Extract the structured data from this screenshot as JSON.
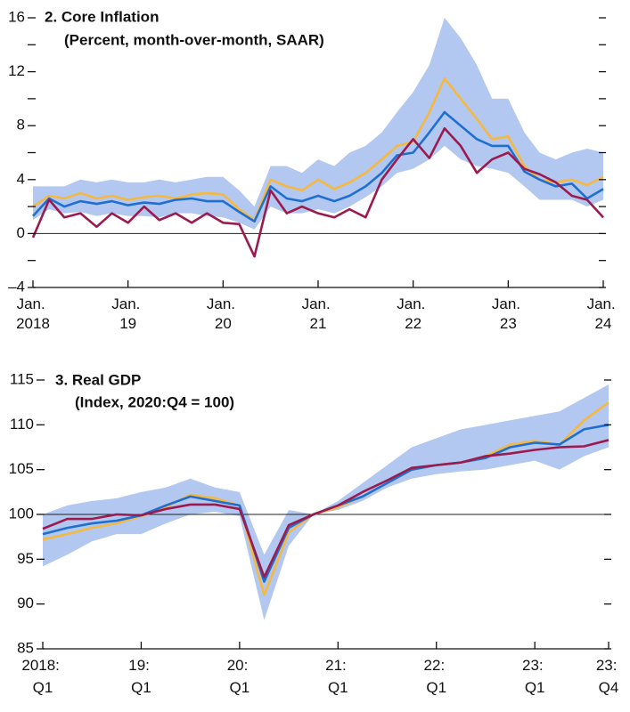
{
  "chart_data": [
    {
      "type": "line",
      "title": "2. Core Inflation",
      "subtitle": "(Percent, month-over-month, SAAR)",
      "x": [
        2018,
        2018.17,
        2018.33,
        2018.5,
        2018.67,
        2018.83,
        2019,
        2019.17,
        2019.33,
        2019.5,
        2019.67,
        2019.83,
        2020,
        2020.17,
        2020.33,
        2020.5,
        2020.67,
        2020.83,
        2021,
        2021.17,
        2021.33,
        2021.5,
        2021.67,
        2021.83,
        2022,
        2022.17,
        2022.33,
        2022.5,
        2022.67,
        2022.83,
        2023,
        2023.17,
        2023.33,
        2023.5,
        2023.67,
        2023.83,
        2024
      ],
      "band": {
        "color": "#b3c8f0",
        "lower": [
          1.0,
          1.8,
          1.5,
          1.6,
          1.3,
          1.5,
          1.3,
          1.3,
          1.2,
          1.5,
          1.5,
          1.3,
          1.2,
          0.8,
          0.3,
          2.0,
          1.5,
          1.5,
          1.8,
          1.5,
          2.0,
          2.7,
          3.5,
          4.5,
          4.8,
          5.5,
          6.5,
          5.5,
          5.0,
          4.8,
          4.5,
          3.5,
          2.5,
          2.5,
          2.5,
          2.0,
          2.5
        ],
        "upper": [
          3.5,
          3.5,
          3.5,
          4.0,
          3.8,
          4.0,
          3.8,
          3.8,
          4.0,
          3.8,
          4.0,
          4.2,
          4.2,
          3.2,
          2.0,
          5.0,
          5.0,
          4.5,
          5.5,
          5.0,
          6.0,
          6.5,
          7.5,
          9.0,
          10.5,
          12.5,
          16.0,
          14.5,
          12.5,
          10.0,
          10.0,
          7.5,
          6.0,
          5.5,
          6.0,
          6.3,
          6.0
        ]
      },
      "series": [
        {
          "color": "#f5b841",
          "values": [
            2.0,
            2.8,
            2.6,
            3.0,
            2.6,
            2.8,
            2.5,
            2.7,
            2.8,
            2.6,
            2.9,
            3.0,
            2.9,
            1.8,
            1.0,
            4.0,
            3.5,
            3.2,
            4.0,
            3.3,
            3.8,
            4.5,
            5.5,
            6.5,
            6.8,
            9.0,
            11.5,
            10.0,
            8.5,
            7.0,
            7.2,
            5.0,
            4.0,
            3.8,
            4.0,
            3.6,
            4.2
          ]
        },
        {
          "color": "#1f6fd1",
          "values": [
            1.3,
            2.6,
            2.0,
            2.4,
            2.2,
            2.4,
            2.1,
            2.3,
            2.2,
            2.5,
            2.6,
            2.4,
            2.4,
            1.6,
            0.9,
            3.5,
            2.6,
            2.4,
            2.8,
            2.4,
            2.8,
            3.5,
            4.5,
            5.8,
            6.0,
            7.5,
            9.0,
            8.0,
            7.0,
            6.5,
            6.5,
            4.6,
            4.0,
            3.5,
            3.7,
            2.6,
            3.3
          ]
        },
        {
          "color": "#9b1b4f",
          "values": [
            -0.3,
            2.5,
            1.2,
            1.5,
            0.5,
            1.5,
            0.8,
            2.0,
            1.0,
            1.5,
            0.8,
            1.5,
            0.8,
            0.7,
            -1.7,
            3.2,
            1.5,
            2.0,
            1.5,
            1.2,
            1.8,
            1.2,
            4.0,
            5.5,
            7.0,
            5.6,
            7.8,
            6.5,
            4.5,
            5.5,
            6.0,
            4.8,
            4.4,
            3.8,
            2.8,
            2.5,
            1.2
          ]
        }
      ],
      "xlim": [
        2018,
        2024
      ],
      "xticks": [
        {
          "value": 2018,
          "label": "Jan. 2018"
        },
        {
          "value": 2019,
          "label": "Jan. 19"
        },
        {
          "value": 2020,
          "label": "Jan. 20"
        },
        {
          "value": 2021,
          "label": "Jan. 21"
        },
        {
          "value": 2022,
          "label": "Jan. 22"
        },
        {
          "value": 2023,
          "label": "Jan. 23"
        },
        {
          "value": 2024,
          "label": "Jan. 24"
        }
      ],
      "ylim": [
        -4,
        16
      ],
      "yticks": [
        {
          "value": -4,
          "label": "–4"
        },
        0,
        4,
        8,
        12,
        16
      ],
      "yminor": [
        -2,
        2,
        6,
        10,
        14
      ],
      "reference_line": 0
    },
    {
      "type": "line",
      "title": "3. Real GDP",
      "subtitle": "(Index, 2020:Q4 = 100)",
      "x": [
        2018,
        2018.25,
        2018.5,
        2018.75,
        2019,
        2019.25,
        2019.5,
        2019.75,
        2020,
        2020.25,
        2020.5,
        2020.75,
        2021,
        2021.25,
        2021.5,
        2021.75,
        2022,
        2022.25,
        2022.5,
        2022.75,
        2023,
        2023.25,
        2023.5,
        2023.75
      ],
      "band": {
        "color": "#b3c8f0",
        "lower": [
          94.2,
          95.5,
          97.0,
          97.8,
          97.8,
          99.0,
          100.0,
          100.3,
          99.8,
          88.2,
          96.5,
          100.0,
          100.5,
          101.5,
          103.0,
          104.0,
          104.5,
          104.8,
          105.0,
          105.5,
          106.0,
          105.0,
          106.5,
          107.5
        ],
        "upper": [
          100.0,
          101.0,
          101.5,
          101.8,
          102.5,
          103.0,
          104.0,
          103.0,
          102.5,
          95.5,
          100.5,
          100.0,
          101.5,
          103.5,
          105.5,
          107.5,
          108.5,
          109.5,
          110.0,
          110.5,
          111.0,
          111.5,
          113.0,
          114.5
        ]
      },
      "series": [
        {
          "color": "#f5b841",
          "values": [
            97.2,
            97.8,
            98.5,
            99.0,
            99.8,
            100.8,
            102.2,
            101.8,
            101.0,
            91.0,
            98.0,
            100.0,
            100.8,
            102.0,
            103.5,
            105.0,
            105.5,
            105.8,
            106.5,
            107.8,
            108.2,
            107.8,
            110.5,
            112.5
          ]
        },
        {
          "color": "#1f6fd1",
          "values": [
            97.8,
            98.5,
            99.0,
            99.3,
            99.9,
            101.0,
            102.0,
            101.5,
            101.0,
            92.5,
            98.5,
            100.0,
            101.0,
            102.0,
            103.5,
            105.0,
            105.5,
            105.8,
            106.3,
            107.5,
            108.0,
            107.8,
            109.5,
            110.0
          ]
        },
        {
          "color": "#9b1b4f",
          "values": [
            98.4,
            99.5,
            99.5,
            100.0,
            99.9,
            100.6,
            101.1,
            101.1,
            100.6,
            93.0,
            98.8,
            100.0,
            101.0,
            102.5,
            103.8,
            105.2,
            105.5,
            105.8,
            106.5,
            106.8,
            107.2,
            107.5,
            107.6,
            108.3
          ]
        }
      ],
      "xlim": [
        2018,
        2023.75
      ],
      "xticks": [
        {
          "value": 2018,
          "label": "2018: Q1"
        },
        {
          "value": 2019,
          "label": "19: Q1"
        },
        {
          "value": 2020,
          "label": "20: Q1"
        },
        {
          "value": 2021,
          "label": "21: Q1"
        },
        {
          "value": 2022,
          "label": "22: Q1"
        },
        {
          "value": 2023,
          "label": "23: Q1"
        },
        {
          "value": 2023.75,
          "label": "23: Q4"
        }
      ],
      "ylim": [
        85,
        115
      ],
      "yticks": [
        85,
        90,
        95,
        100,
        105,
        110,
        115
      ],
      "reference_line": 100
    }
  ]
}
